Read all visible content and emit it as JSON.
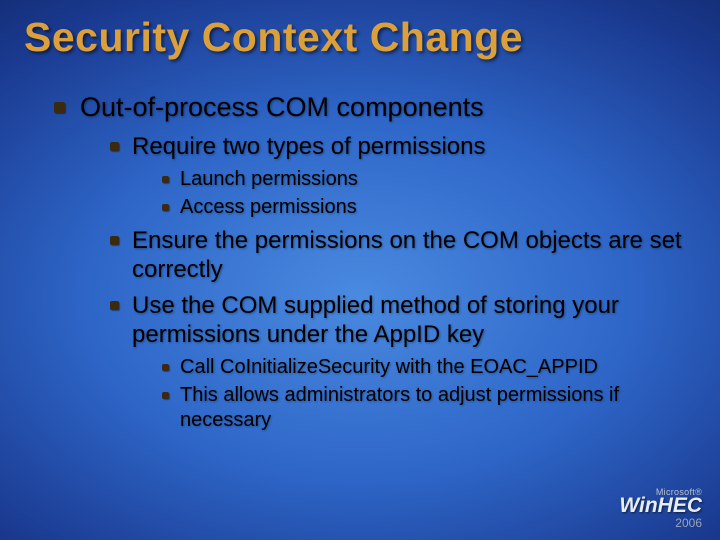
{
  "title": "Security Context Change",
  "colors": {
    "title": "#dca03a",
    "text": "#000000",
    "bullet": "#3a2a10",
    "bg_center": "#4a8ae0",
    "bg_edge": "#020820"
  },
  "fonts": {
    "title_size": 41,
    "lvl1_size": 27,
    "lvl2_size": 24,
    "lvl3_size": 20,
    "family": "Arial"
  },
  "bullets": [
    {
      "text": "Out-of-process COM components",
      "children": [
        {
          "text": "Require two types of permissions",
          "children": [
            {
              "text": "Launch permissions"
            },
            {
              "text": "Access permissions"
            }
          ]
        },
        {
          "text": "Ensure the permissions on the COM objects are set correctly"
        },
        {
          "text": "Use the COM supplied method of storing your permissions under the AppID key",
          "children": [
            {
              "text": "Call CoInitializeSecurity with the EOAC_APPID"
            },
            {
              "text": "This allows administrators to adjust permissions if necessary"
            }
          ]
        }
      ]
    }
  ],
  "logo": {
    "vendor": "Microsoft®",
    "brand": "WinHEC",
    "year": "2006"
  }
}
